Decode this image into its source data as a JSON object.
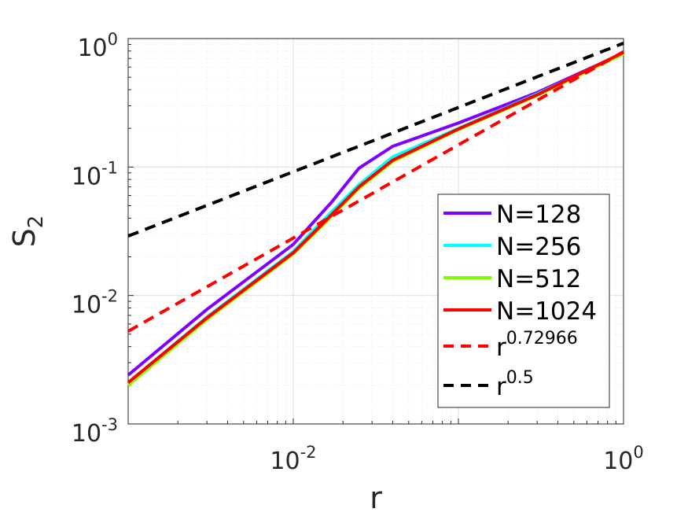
{
  "chart_data": {
    "type": "line",
    "xscale": "log",
    "yscale": "log",
    "xlim": [
      0.001,
      1
    ],
    "ylim": [
      0.001,
      1
    ],
    "xlabel": "r",
    "ylabel": {
      "base": "S",
      "sub": "2"
    },
    "grid": true,
    "minor_grid": true,
    "legend_position": "lower-right",
    "x_ticks": [
      {
        "value": 0.01,
        "base": "10",
        "exp": "-2"
      },
      {
        "value": 1,
        "base": "10",
        "exp": "0"
      }
    ],
    "y_ticks": [
      {
        "value": 0.001,
        "base": "10",
        "exp": "-3"
      },
      {
        "value": 0.01,
        "base": "10",
        "exp": "-2"
      },
      {
        "value": 0.1,
        "base": "10",
        "exp": "-1"
      },
      {
        "value": 1,
        "base": "10",
        "exp": "0"
      }
    ],
    "series": [
      {
        "name": "N=128",
        "color": "#7f00ff",
        "style": "solid",
        "x": [
          0.001,
          0.003,
          0.01,
          0.017,
          0.025,
          0.04,
          0.1,
          0.3,
          1
        ],
        "y": [
          0.0024,
          0.0078,
          0.025,
          0.053,
          0.098,
          0.145,
          0.22,
          0.38,
          0.77
        ]
      },
      {
        "name": "N=256",
        "color": "#00ffff",
        "style": "solid",
        "x": [
          0.001,
          0.003,
          0.01,
          0.015,
          0.025,
          0.04,
          0.1,
          0.3,
          1
        ],
        "y": [
          0.0021,
          0.0068,
          0.022,
          0.038,
          0.073,
          0.12,
          0.2,
          0.37,
          0.76
        ]
      },
      {
        "name": "N=512",
        "color": "#80ff00",
        "style": "solid",
        "x": [
          0.001,
          0.003,
          0.01,
          0.015,
          0.025,
          0.04,
          0.1,
          0.3,
          1
        ],
        "y": [
          0.002,
          0.0065,
          0.021,
          0.035,
          0.068,
          0.11,
          0.195,
          0.36,
          0.76
        ]
      },
      {
        "name": "N=1024",
        "color": "#ff0000",
        "style": "solid",
        "x": [
          0.001,
          0.003,
          0.01,
          0.015,
          0.025,
          0.04,
          0.1,
          0.3,
          1
        ],
        "y": [
          0.0021,
          0.0067,
          0.0215,
          0.036,
          0.07,
          0.113,
          0.198,
          0.365,
          0.78
        ]
      },
      {
        "name": "r^0.72966",
        "label_base": "r",
        "label_exp": "0.72966",
        "color": "#ff0000",
        "style": "dashed",
        "x": [
          0.001,
          1
        ],
        "y": [
          0.00527,
          0.79
        ]
      },
      {
        "name": "r^0.5",
        "label_base": "r",
        "label_exp": "0.5",
        "color": "#000000",
        "style": "dashed",
        "x": [
          0.001,
          1
        ],
        "y": [
          0.029,
          0.92
        ]
      }
    ]
  }
}
